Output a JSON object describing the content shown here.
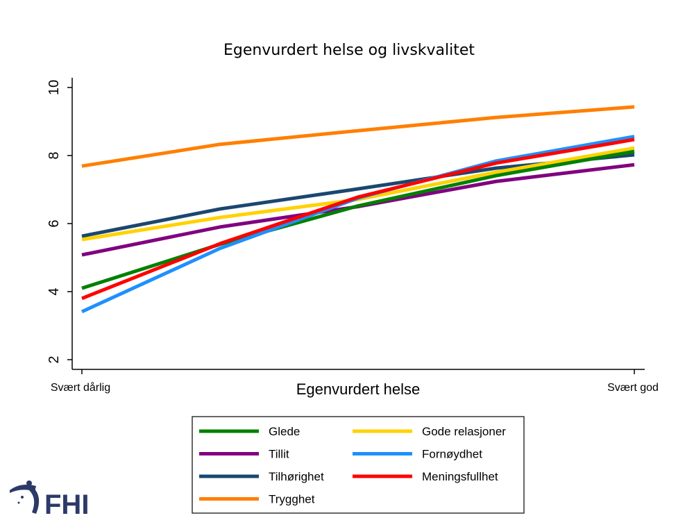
{
  "chart_data": {
    "type": "line",
    "title": "Egenvurdert helse og livskvalitet",
    "xlabel": "Egenvurdert helse",
    "ylabel": "",
    "x": [
      1,
      2,
      3,
      4,
      5
    ],
    "x_tick_labels": [
      {
        "x": 1,
        "label": "Svært dårlig"
      },
      {
        "x": 5,
        "label": "Svært god"
      }
    ],
    "y_ticks": [
      2,
      4,
      6,
      8,
      10
    ],
    "ylim": [
      2,
      10
    ],
    "xlim": [
      1,
      5
    ],
    "grid": false,
    "legend_position": "bottom",
    "series": [
      {
        "name": "Glede",
        "color": "#008000",
        "values": [
          4.1,
          5.39,
          6.52,
          7.41,
          8.12
        ]
      },
      {
        "name": "Tillit",
        "color": "#800080",
        "values": [
          5.08,
          5.9,
          6.5,
          7.24,
          7.73
        ]
      },
      {
        "name": "Tilhørighet",
        "color": "#1a476f",
        "values": [
          5.63,
          6.43,
          7.02,
          7.63,
          8.02
        ]
      },
      {
        "name": "Trygghet",
        "color": "#ff7f00",
        "values": [
          7.69,
          8.33,
          8.73,
          9.12,
          9.43
        ]
      },
      {
        "name": "Gode relasjoner",
        "color": "#ffd200",
        "values": [
          5.53,
          6.18,
          6.71,
          7.51,
          8.22
        ]
      },
      {
        "name": "Fornøydhet",
        "color": "#1e90ff",
        "values": [
          3.41,
          5.27,
          6.75,
          7.84,
          8.56
        ]
      },
      {
        "name": "Meningsfullhet",
        "color": "#ff0000",
        "values": [
          3.8,
          5.41,
          6.78,
          7.78,
          8.47
        ]
      }
    ]
  },
  "logo": {
    "text": "FHI",
    "color": "#2b3a67"
  }
}
